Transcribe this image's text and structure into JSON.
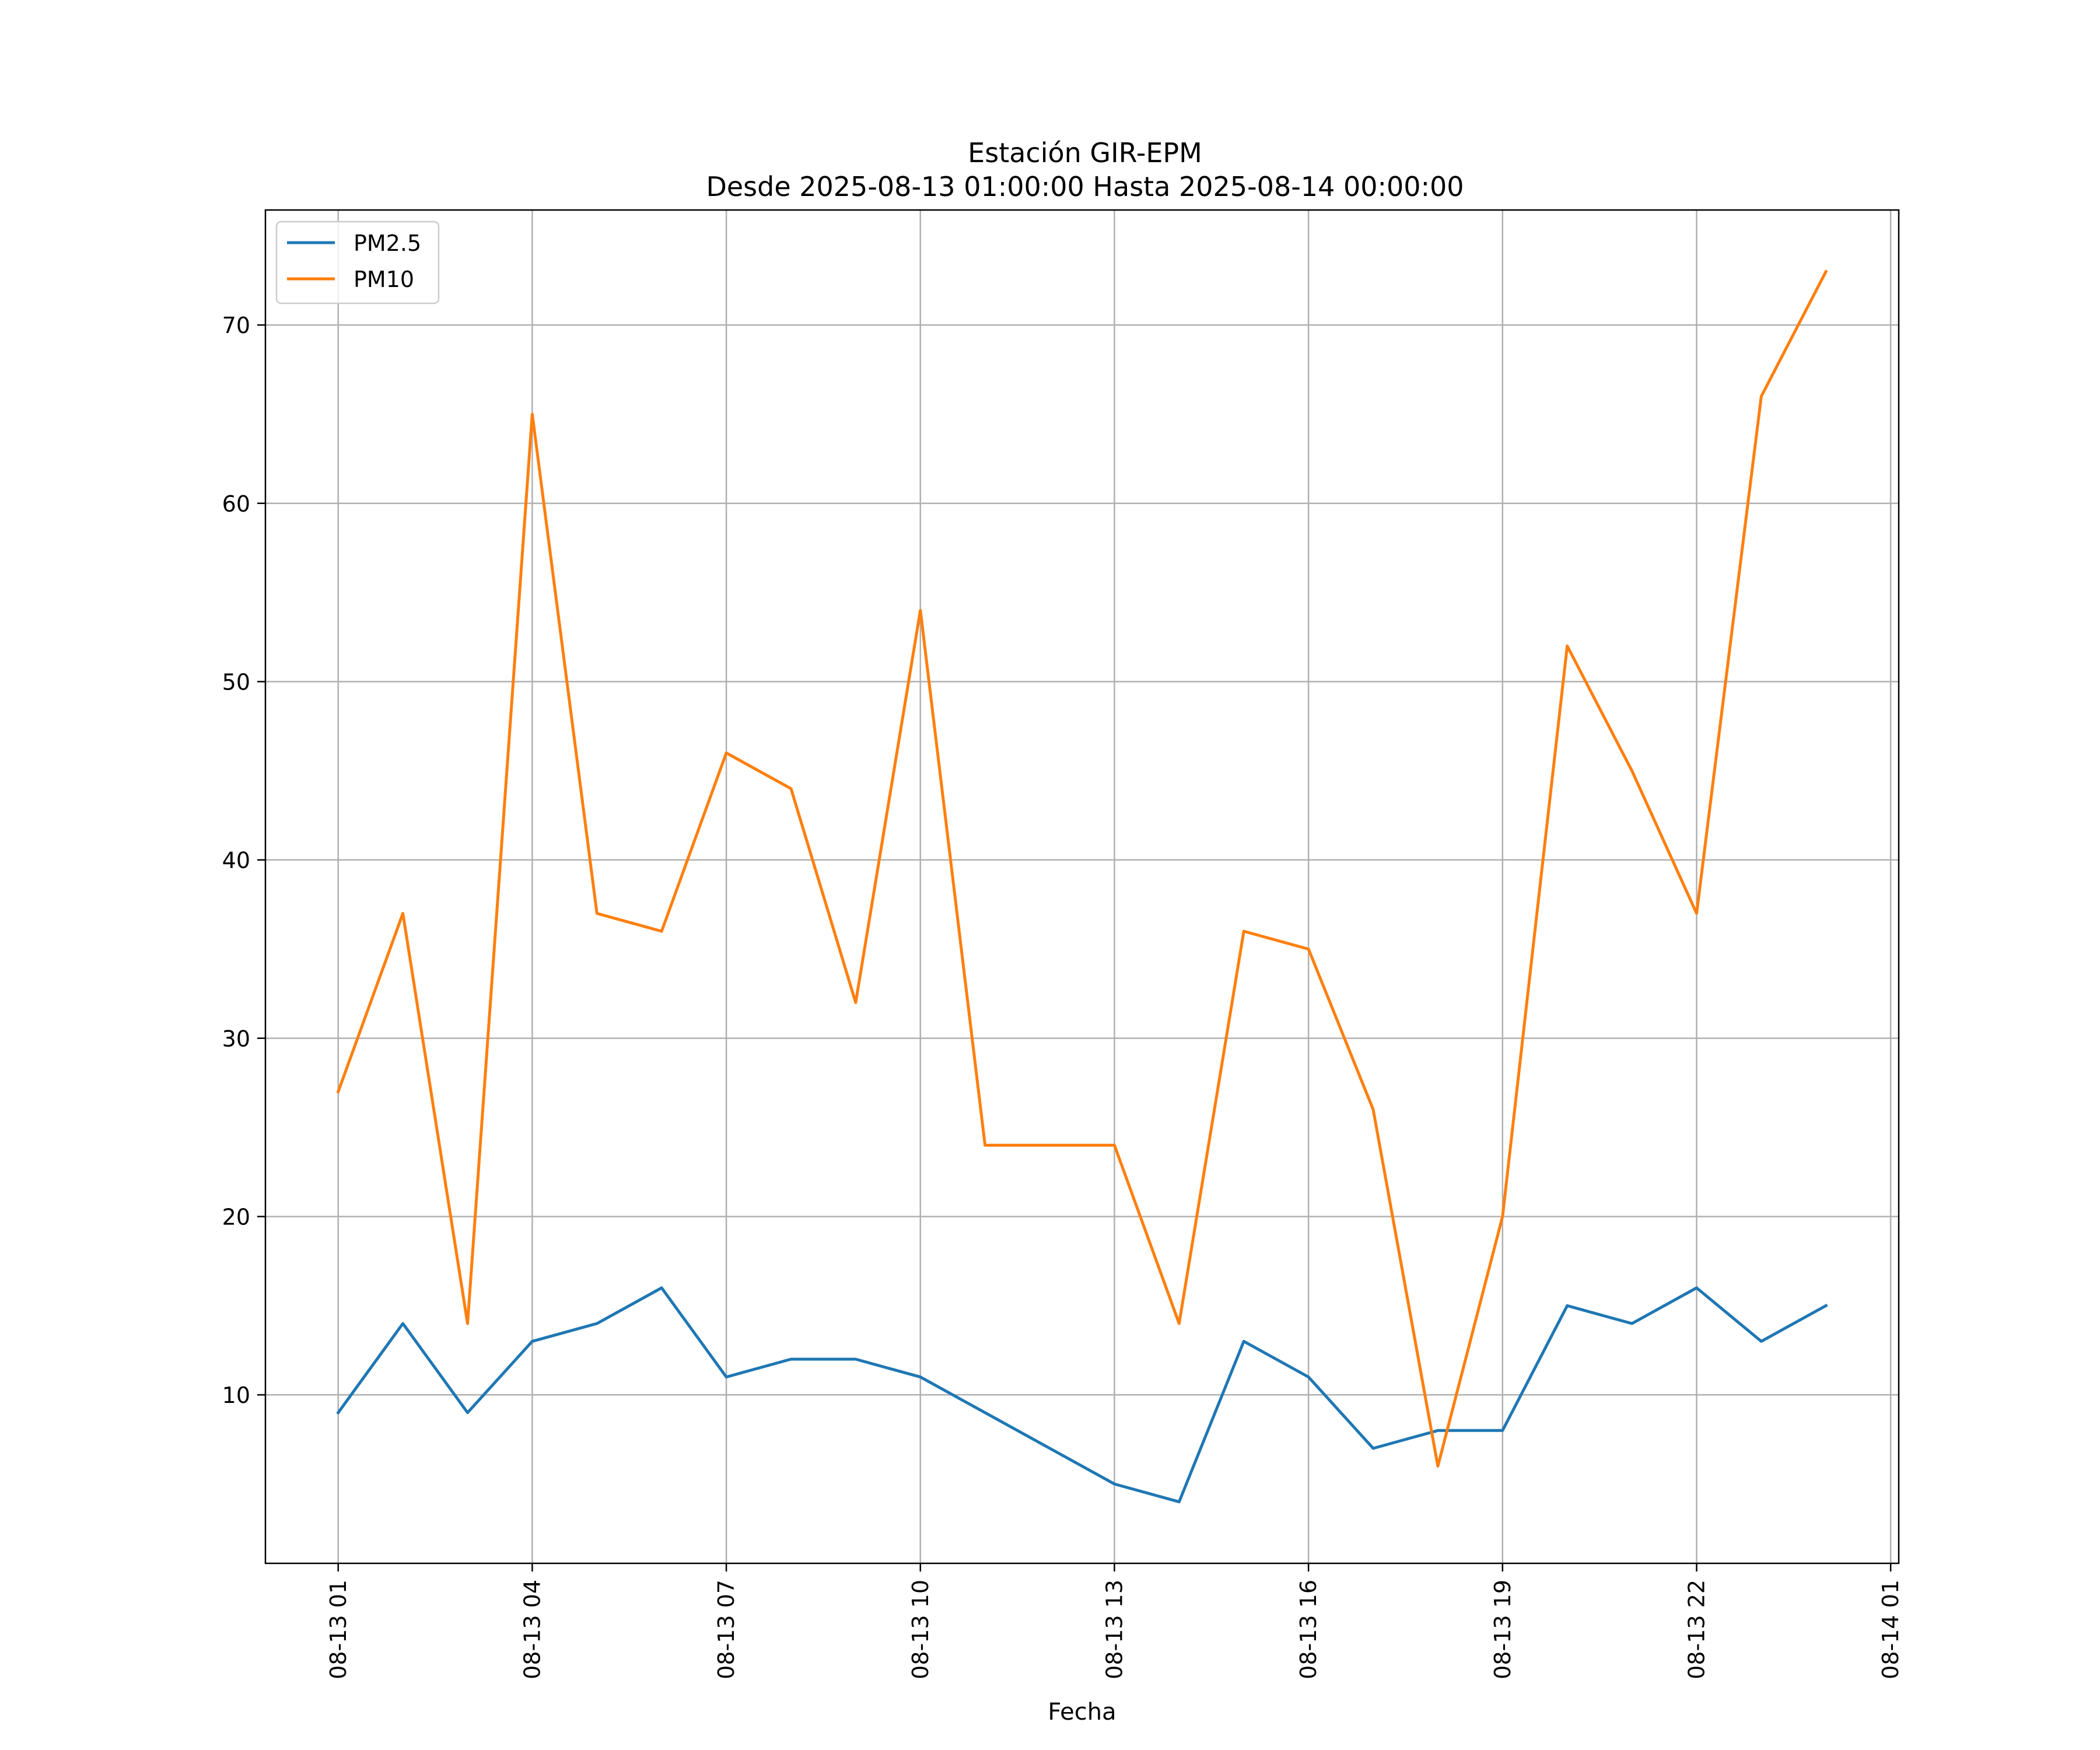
{
  "chart_data": {
    "type": "line",
    "title": "Estación GIR-EPM",
    "subtitle": "Desde 2025-08-13 01:00:00 Hasta 2025-08-14 00:00:00",
    "xlabel": "Fecha",
    "ylabel": "",
    "x_unit": "hours since 2025-08-13 01:00",
    "xlim": [
      -1.125,
      24.125
    ],
    "ylim": [
      0.55,
      76.45
    ],
    "x_ticks": [
      {
        "value": 0,
        "label": "08-13 01"
      },
      {
        "value": 3,
        "label": "08-13 04"
      },
      {
        "value": 6,
        "label": "08-13 07"
      },
      {
        "value": 9,
        "label": "08-13 10"
      },
      {
        "value": 12,
        "label": "08-13 13"
      },
      {
        "value": 15,
        "label": "08-13 16"
      },
      {
        "value": 18,
        "label": "08-13 19"
      },
      {
        "value": 21,
        "label": "08-13 22"
      },
      {
        "value": 24,
        "label": "08-14 01"
      }
    ],
    "y_ticks": [
      {
        "value": 10,
        "label": "10"
      },
      {
        "value": 20,
        "label": "20"
      },
      {
        "value": 30,
        "label": "30"
      },
      {
        "value": 40,
        "label": "40"
      },
      {
        "value": 50,
        "label": "50"
      },
      {
        "value": 60,
        "label": "60"
      },
      {
        "value": 70,
        "label": "70"
      }
    ],
    "grid": true,
    "legend_position": "top-left",
    "x": [
      0,
      1,
      2,
      3,
      4,
      5,
      6,
      7,
      8,
      9,
      10,
      11,
      12,
      13,
      14,
      15,
      16,
      17,
      18,
      19,
      20,
      21,
      22,
      23
    ],
    "series": [
      {
        "name": "PM2.5",
        "color": "#1f77b4",
        "values": [
          9,
          14,
          9,
          13,
          14,
          16,
          11,
          12,
          12,
          11,
          9,
          7,
          5,
          4,
          13,
          11,
          7,
          8,
          8,
          15,
          14,
          16,
          13,
          15
        ]
      },
      {
        "name": "PM10",
        "color": "#ff7f0e",
        "values": [
          27,
          37,
          14,
          65,
          37,
          36,
          46,
          44,
          32,
          54,
          24,
          24,
          24,
          14,
          36,
          35,
          26,
          6,
          20,
          52,
          45,
          37,
          66,
          73
        ]
      }
    ]
  }
}
